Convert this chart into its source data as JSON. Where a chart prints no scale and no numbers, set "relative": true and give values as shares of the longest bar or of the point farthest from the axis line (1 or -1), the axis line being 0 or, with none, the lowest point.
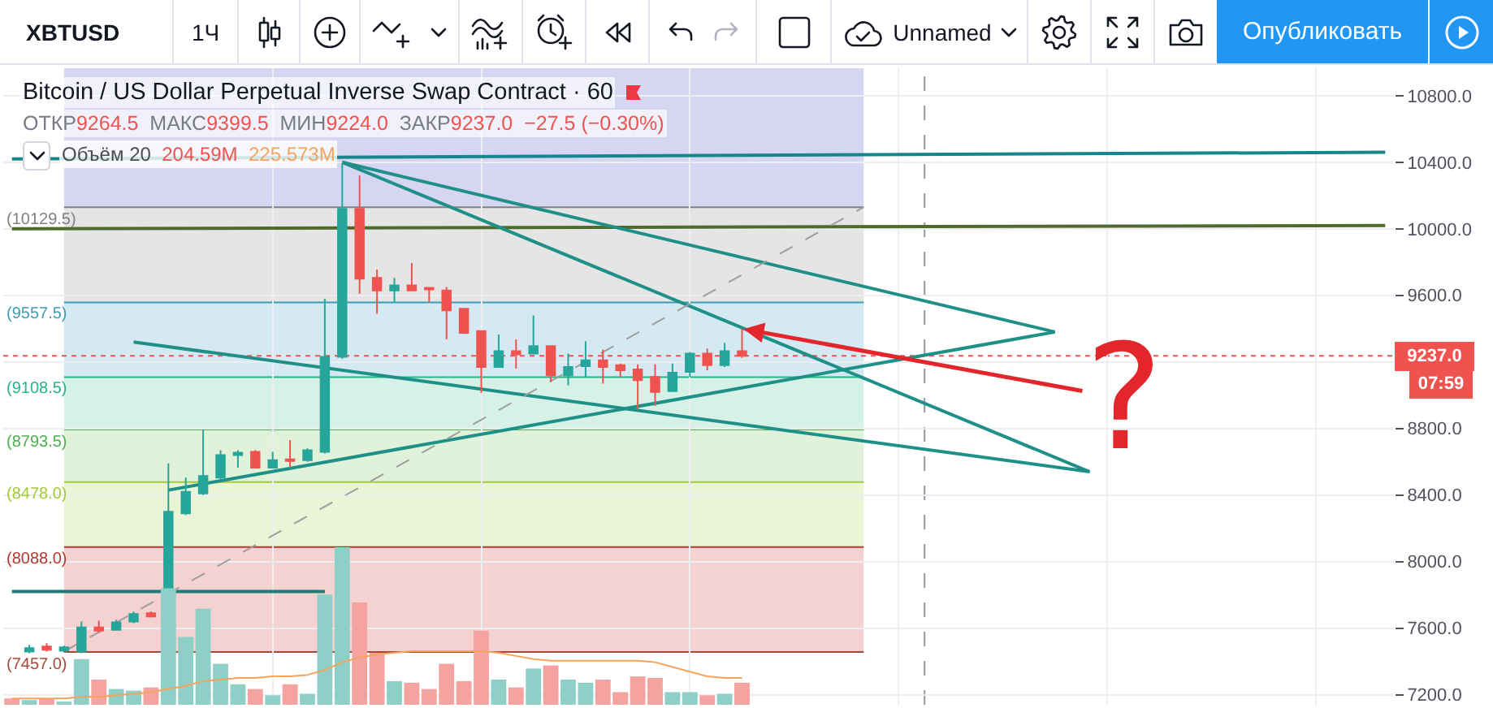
{
  "chart_data": [
    {
      "type": "other",
      "annotations": [
        "XBTUSD",
        "1Ч",
        "Unnamed",
        "Опубликовать"
      ]
    },
    {
      "type": "candlestick",
      "title": "Bitcoin / US Dollar Perpetual Inverse Swap Contract · 60",
      "subtitle": "ОТКР9264.5  МАКС9399.5  МИН9224.0  ЗАКР9237.0  −27.5 (−0.30%)",
      "categories": [
        null,
        null,
        null,
        null,
        null,
        null,
        null,
        null,
        null,
        null,
        null,
        null,
        null,
        null,
        null,
        null,
        null,
        null,
        null,
        null,
        null,
        null,
        null,
        null,
        null,
        null,
        null,
        null,
        null,
        null,
        null,
        null,
        null,
        null,
        null,
        null,
        null,
        null,
        null,
        null,
        null,
        null,
        null,
        null,
        null,
        null,
        null,
        null,
        null,
        null,
        null,
        null,
        null,
        null,
        null,
        null,
        null,
        null,
        null,
        null,
        null,
        null,
        null,
        null,
        null,
        null,
        null,
        null,
        null,
        null,
        null,
        null,
        null,
        null,
        null,
        null,
        null,
        null,
        null,
        null
      ],
      "ohlc": [
        null,
        [
          7460,
          7500,
          7450,
          7480
        ],
        [
          7490,
          7510,
          7460,
          7470
        ],
        [
          7465,
          7495,
          7455,
          7485
        ],
        [
          7460,
          7640,
          7450,
          7605
        ],
        [
          7605,
          7645,
          7575,
          7585
        ],
        [
          7590,
          7650,
          7585,
          7635
        ],
        [
          7640,
          7700,
          7630,
          7685
        ],
        [
          7690,
          7700,
          7665,
          7670
        ],
        [
          7670,
          8590,
          7655,
          8300
        ],
        [
          8290,
          8505,
          8280,
          8420
        ],
        [
          8410,
          8790,
          8400,
          8515
        ],
        [
          8505,
          8670,
          8495,
          8640
        ],
        [
          8640,
          8670,
          8565,
          8655
        ],
        [
          8660,
          8670,
          8560,
          8565
        ],
        [
          8565,
          8660,
          8560,
          8610
        ],
        [
          8615,
          8730,
          8565,
          8605
        ],
        [
          8610,
          8680,
          8600,
          8670
        ],
        [
          8660,
          9580,
          8650,
          9230
        ],
        [
          9230,
          10390,
          9220,
          10120
        ],
        [
          10120,
          10320,
          9610,
          9700
        ],
        [
          9705,
          9755,
          9490,
          9630
        ],
        [
          9630,
          9705,
          9560,
          9660
        ],
        [
          9660,
          9795,
          9625,
          9630
        ],
        [
          9645,
          9650,
          9560,
          9635
        ],
        [
          9630,
          9650,
          9335,
          9510
        ],
        [
          9520,
          9525,
          9370,
          9375
        ],
        [
          9385,
          9390,
          9015,
          9170
        ],
        [
          9170,
          9365,
          9165,
          9265
        ],
        [
          9265,
          9335,
          9160,
          9245
        ],
        [
          9250,
          9480,
          9245,
          9295
        ],
        [
          9295,
          9300,
          9080,
          9120
        ],
        [
          9120,
          9250,
          9060,
          9170
        ],
        [
          9175,
          9325,
          9110,
          9210
        ],
        [
          9210,
          9275,
          9070,
          9170
        ],
        [
          9180,
          9190,
          9110,
          9150
        ],
        [
          9155,
          9185,
          8915,
          9090
        ],
        [
          9110,
          9185,
          8935,
          9020
        ],
        [
          9025,
          9190,
          9020,
          9135
        ],
        [
          9140,
          9260,
          9110,
          9250
        ],
        [
          9250,
          9280,
          9150,
          9180
        ],
        [
          9180,
          9315,
          9170,
          9265
        ],
        [
          9264.5,
          9399.5,
          9224.0,
          9237.0
        ],
        null,
        null,
        null,
        null,
        null,
        null,
        null,
        null,
        null,
        null,
        null,
        null,
        null,
        null,
        null,
        null,
        null,
        null,
        null,
        null,
        null,
        null,
        null,
        null,
        null,
        null,
        null,
        null,
        null,
        null,
        null,
        null,
        null,
        null,
        null,
        null,
        null
      ],
      "colors": [
        null,
        "#26a69a",
        "#ef5350",
        "#26a69a",
        "#26a69a",
        "#ef5350",
        "#26a69a",
        "#26a69a",
        "#ef5350",
        "#26a69a",
        "#26a69a",
        "#26a69a",
        "#26a69a",
        "#26a69a",
        "#ef5350",
        "#26a69a",
        "#ef5350",
        "#26a69a",
        "#26a69a",
        "#26a69a",
        "#ef5350",
        "#ef5350",
        "#26a69a",
        "#ef5350",
        "#ef5350",
        "#ef5350",
        "#ef5350",
        "#ef5350",
        "#26a69a",
        "#ef5350",
        "#26a69a",
        "#ef5350",
        "#26a69a",
        "#26a69a",
        "#ef5350",
        "#ef5350",
        "#ef5350",
        "#ef5350",
        "#26a69a",
        "#26a69a",
        "#ef5350",
        "#26a69a",
        "#ef5350",
        null,
        null,
        null,
        null,
        null,
        null,
        null,
        null,
        null,
        null,
        null,
        null,
        null,
        null,
        null,
        null,
        null,
        null,
        null,
        null,
        null,
        null,
        null,
        null,
        null,
        null,
        null,
        null,
        null,
        null,
        null,
        null,
        null,
        null,
        null,
        null,
        null
      ],
      "series": [
        {
          "type": "line",
          "color": "#15868a",
          "values": [
            10420,
            null,
            null,
            null,
            null,
            null,
            null,
            null,
            null,
            null,
            null,
            null,
            null,
            null,
            null,
            null,
            null,
            null,
            null,
            null,
            null,
            null,
            null,
            null,
            null,
            null,
            null,
            null,
            null,
            null,
            null,
            null,
            null,
            null,
            null,
            null,
            null,
            null,
            null,
            null,
            null,
            null,
            null,
            null,
            null,
            null,
            null,
            null,
            null,
            null,
            null,
            null,
            null,
            null,
            null,
            null,
            null,
            null,
            null,
            null,
            null,
            null,
            null,
            null,
            null,
            null,
            null,
            null,
            null,
            null,
            null,
            null,
            null,
            null,
            null,
            null,
            null,
            null,
            null,
            10460
          ]
        },
        {
          "type": "line",
          "color": "#4e6a2c",
          "values": [
            10000,
            null,
            null,
            null,
            null,
            null,
            null,
            null,
            null,
            null,
            null,
            null,
            null,
            null,
            null,
            null,
            null,
            null,
            null,
            null,
            null,
            null,
            null,
            null,
            null,
            null,
            null,
            null,
            null,
            null,
            null,
            null,
            null,
            null,
            null,
            null,
            null,
            null,
            null,
            null,
            null,
            null,
            null,
            null,
            null,
            null,
            null,
            null,
            null,
            null,
            null,
            null,
            null,
            null,
            null,
            null,
            null,
            null,
            null,
            null,
            null,
            null,
            null,
            null,
            null,
            null,
            null,
            null,
            null,
            null,
            null,
            null,
            null,
            null,
            null,
            null,
            null,
            null,
            null,
            10020
          ]
        },
        {
          "type": "line",
          "color": "#1f9088",
          "values": [
            null,
            null,
            null,
            null,
            null,
            null,
            null,
            null,
            null,
            8430,
            null,
            null,
            null,
            null,
            null,
            null,
            null,
            null,
            null,
            null,
            null,
            null,
            null,
            null,
            null,
            null,
            null,
            null,
            null,
            null,
            null,
            null,
            null,
            null,
            null,
            null,
            null,
            null,
            null,
            null,
            null,
            null,
            null,
            null,
            null,
            null,
            null,
            null,
            null,
            null,
            null,
            null,
            null,
            null,
            null,
            null,
            null,
            null,
            null,
            null,
            9380,
            null,
            null,
            null,
            null,
            null,
            null,
            null,
            null,
            null,
            null,
            null,
            null,
            null,
            null,
            null,
            null,
            null,
            null,
            null
          ]
        },
        {
          "type": "line",
          "color": "#1f9088",
          "values": [
            null,
            null,
            null,
            null,
            null,
            null,
            null,
            null,
            null,
            null,
            null,
            null,
            null,
            null,
            null,
            null,
            null,
            null,
            null,
            10400,
            null,
            null,
            null,
            null,
            null,
            null,
            null,
            null,
            null,
            null,
            null,
            null,
            null,
            null,
            null,
            null,
            null,
            null,
            null,
            null,
            null,
            null,
            null,
            null,
            null,
            null,
            null,
            null,
            null,
            null,
            null,
            null,
            null,
            null,
            null,
            null,
            null,
            null,
            null,
            null,
            9380,
            null,
            null,
            null,
            null,
            null,
            null,
            null,
            null,
            null,
            null,
            null,
            null,
            null,
            null,
            null,
            null,
            null,
            null,
            null
          ]
        },
        {
          "type": "line",
          "color": "#1f9088",
          "values": [
            null,
            null,
            null,
            null,
            null,
            null,
            null,
            null,
            null,
            null,
            null,
            null,
            null,
            null,
            null,
            null,
            null,
            null,
            null,
            10400,
            null,
            null,
            null,
            null,
            null,
            null,
            null,
            null,
            null,
            null,
            null,
            null,
            null,
            null,
            null,
            null,
            null,
            null,
            null,
            null,
            null,
            null,
            null,
            null,
            null,
            null,
            null,
            null,
            null,
            null,
            null,
            null,
            null,
            null,
            null,
            null,
            null,
            null,
            null,
            null,
            null,
            null,
            8540,
            null,
            null,
            null,
            null,
            null,
            null,
            null,
            null,
            null,
            null,
            null,
            null,
            null,
            null,
            null,
            null,
            null
          ]
        },
        {
          "type": "line",
          "color": "#1f9088",
          "values": [
            null,
            null,
            null,
            null,
            null,
            null,
            null,
            9320,
            null,
            null,
            null,
            null,
            null,
            null,
            null,
            null,
            null,
            null,
            null,
            null,
            null,
            null,
            null,
            null,
            null,
            null,
            null,
            null,
            null,
            null,
            null,
            null,
            null,
            null,
            null,
            null,
            null,
            null,
            null,
            null,
            null,
            null,
            null,
            null,
            null,
            null,
            null,
            null,
            null,
            null,
            null,
            null,
            null,
            null,
            null,
            null,
            null,
            null,
            null,
            null,
            null,
            null,
            8540,
            null,
            null,
            null,
            null,
            null,
            null,
            null,
            null,
            null,
            null,
            null,
            null,
            null,
            null,
            null,
            null,
            null
          ]
        },
        {
          "type": "line",
          "color": "#1e7b77",
          "values": [
            7820,
            null,
            null,
            null,
            null,
            null,
            null,
            null,
            null,
            null,
            null,
            null,
            null,
            null,
            null,
            null,
            null,
            null,
            7820,
            null,
            null,
            null,
            null,
            null,
            null,
            null,
            null,
            null,
            null,
            null,
            null,
            null,
            null,
            null,
            null,
            null,
            null,
            null,
            null,
            null,
            null,
            null,
            null,
            null,
            null,
            null,
            null,
            null,
            null,
            null,
            null,
            null,
            null,
            null,
            null,
            null,
            null,
            null,
            null,
            null,
            null,
            null,
            null,
            null,
            null,
            null,
            null,
            null,
            null,
            null,
            null,
            null,
            null,
            null,
            null,
            null,
            null,
            null,
            null,
            null
          ]
        },
        {
          "type": "line",
          "color": "#9e9e9e",
          "line_style": "dashed",
          "values": [
            null,
            null,
            null,
            7460,
            null,
            null,
            null,
            null,
            null,
            null,
            null,
            null,
            null,
            null,
            null,
            null,
            null,
            null,
            null,
            null,
            null,
            null,
            null,
            null,
            null,
            null,
            null,
            null,
            null,
            null,
            null,
            null,
            null,
            null,
            null,
            null,
            null,
            null,
            null,
            null,
            null,
            null,
            null,
            null,
            null,
            null,
            null,
            null,
            null,
            10130,
            null,
            null,
            null,
            null,
            null,
            null,
            null,
            null,
            null,
            null,
            null,
            null,
            null,
            null,
            null,
            null,
            null,
            null,
            null,
            null,
            null,
            null,
            null,
            null,
            null,
            null,
            null,
            null,
            null,
            null
          ]
        }
      ],
      "ylim": [
        7140,
        10965
      ],
      "yticks": [
        {
          "value": 7200,
          "label": "7200.0"
        },
        {
          "value": 7600,
          "label": "7600.0"
        },
        {
          "value": 8000,
          "label": "8000.0"
        },
        {
          "value": 8400,
          "label": "8400.0"
        },
        {
          "value": 8800,
          "label": "8800.0"
        },
        {
          "value": 9200,
          "label": null
        },
        {
          "value": 9600,
          "label": "9600.0"
        },
        {
          "value": 10000,
          "label": "10000.0"
        },
        {
          "value": 10400,
          "label": "10400.0"
        },
        {
          "value": 10800,
          "label": "10800.0"
        }
      ],
      "ref_lines": [
        {
          "axis": "y",
          "value": 10129.5,
          "label": "(10129.5)",
          "color": "#808080"
        },
        {
          "axis": "y",
          "value": 9557.5,
          "label": "(9557.5)",
          "color": "#3d9cb5"
        },
        {
          "axis": "y",
          "value": 9108.5,
          "label": "(9108.5)",
          "color": "#26b38c"
        },
        {
          "axis": "y",
          "value": 8793.5,
          "label": "(8793.5)",
          "color": "#4caf50"
        },
        {
          "axis": "y",
          "value": 8478.0,
          "label": "(8478.0)",
          "color": "#a4c93a"
        },
        {
          "axis": "y",
          "value": 8088.0,
          "label": "(8088.0)",
          "color": "#b5392f"
        },
        {
          "axis": "y",
          "value": 7457.0,
          "label": "(7457.0)",
          "color": "#a9473a"
        },
        {
          "axis": "y",
          "value": 9237.0,
          "label": "9237.0",
          "color": "#ef5350",
          "line_style": "dotted"
        }
      ],
      "bands": [
        {
          "axis": "y",
          "from": 10129.5,
          "to": 10965,
          "color": "#d6d6f3"
        },
        {
          "axis": "y",
          "from": 9557.5,
          "to": 10129.5,
          "color": "#e5e5e6"
        },
        {
          "axis": "y",
          "from": 9108.5,
          "to": 9557.5,
          "color": "#d5e9f2"
        },
        {
          "axis": "y",
          "from": 8793.5,
          "to": 9108.5,
          "color": "#d6f2e7"
        },
        {
          "axis": "y",
          "from": 8478.0,
          "to": 8793.5,
          "color": "#e1f2da"
        },
        {
          "axis": "y",
          "from": 8088.0,
          "to": 8478.0,
          "color": "#e9f5d6"
        },
        {
          "axis": "y",
          "from": 7457.0,
          "to": 8088.0,
          "color": "#f4d2d1"
        }
      ],
      "annotations": [
        "07:59",
        "?"
      ],
      "grid": true,
      "tick_labels": "y"
    },
    {
      "type": "bar",
      "relative": true,
      "categories": [
        null,
        null,
        null,
        null,
        null,
        null,
        null,
        null,
        null,
        null,
        null,
        null,
        null,
        null,
        null,
        null,
        null,
        null,
        null,
        null,
        null,
        null,
        null,
        null,
        null,
        null,
        null,
        null,
        null,
        null,
        null,
        null,
        null,
        null,
        null,
        null,
        null,
        null,
        null,
        null,
        null,
        null,
        null,
        null,
        null,
        null,
        null,
        null,
        null,
        null,
        null,
        null,
        null,
        null,
        null,
        null,
        null,
        null,
        null,
        null,
        null,
        null,
        null,
        null,
        null,
        null,
        null,
        null,
        null,
        null,
        null,
        null,
        null,
        null,
        null,
        null,
        null,
        null,
        null,
        null
      ],
      "series": [
        {
          "type": "bar",
          "colors": [
            "#f4a3a1",
            "#8ed0c8",
            "#f4a3a1",
            "#8ed0c8",
            "#8ed0c8",
            "#f4a3a1",
            "#8ed0c8",
            "#8ed0c8",
            "#f4a3a1",
            "#8ed0c8",
            "#8ed0c8",
            "#8ed0c8",
            "#8ed0c8",
            "#8ed0c8",
            "#f4a3a1",
            "#8ed0c8",
            "#f4a3a1",
            "#8ed0c8",
            "#8ed0c8",
            "#8ed0c8",
            "#f4a3a1",
            "#f4a3a1",
            "#8ed0c8",
            "#f4a3a1",
            "#f4a3a1",
            "#f4a3a1",
            "#f4a3a1",
            "#f4a3a1",
            "#8ed0c8",
            "#f4a3a1",
            "#8ed0c8",
            "#f4a3a1",
            "#8ed0c8",
            "#8ed0c8",
            "#f4a3a1",
            "#f4a3a1",
            "#f4a3a1",
            "#f4a3a1",
            "#8ed0c8",
            "#8ed0c8",
            "#f4a3a1",
            "#8ed0c8",
            "#f4a3a1",
            null,
            null,
            null,
            null,
            null,
            null,
            null,
            null,
            null,
            null,
            null,
            null,
            null,
            null,
            null,
            null,
            null,
            null,
            null,
            null,
            null,
            null,
            null,
            null,
            null,
            null,
            null,
            null,
            null,
            null,
            null,
            null,
            null,
            null,
            null,
            null,
            null
          ],
          "values": [
            0.04,
            0.03,
            0.04,
            0.02,
            0.29,
            0.16,
            0.1,
            0.09,
            0.11,
            0.74,
            0.43,
            0.61,
            0.26,
            0.13,
            0.1,
            0.06,
            0.13,
            0.07,
            0.7,
            1,
            0.65,
            0.33,
            0.15,
            0.14,
            0.1,
            0.26,
            0.15,
            0.47,
            0.16,
            0.11,
            0.23,
            0.25,
            0.16,
            0.14,
            0.16,
            0.08,
            0.18,
            0.17,
            0.08,
            0.08,
            0.06,
            0.07,
            0.14,
            null,
            null,
            null,
            null,
            null,
            null,
            null,
            null,
            null,
            null,
            null,
            null,
            null,
            null,
            null,
            null,
            null,
            null,
            null,
            null,
            null,
            null,
            null,
            null,
            null,
            null,
            null,
            null,
            null,
            null,
            null,
            null,
            null,
            null,
            null,
            null,
            null
          ]
        },
        {
          "type": "line",
          "color": "#f6a35b",
          "values": [
            0.04,
            0.04,
            0.04,
            0.04,
            0.05,
            0.05,
            0.06,
            0.07,
            0.08,
            0.1,
            0.12,
            0.15,
            0.16,
            0.17,
            0.17,
            0.18,
            0.18,
            0.19,
            0.22,
            0.27,
            0.3,
            0.32,
            0.33,
            0.34,
            0.34,
            0.34,
            0.34,
            0.34,
            0.33,
            0.31,
            0.29,
            0.28,
            0.28,
            0.28,
            0.28,
            0.28,
            0.28,
            0.27,
            0.24,
            0.21,
            0.18,
            0.17,
            0.17,
            null,
            null,
            null,
            null,
            null,
            null,
            null,
            null,
            null,
            null,
            null,
            null,
            null,
            null,
            null,
            null,
            null,
            null,
            null,
            null,
            null,
            null,
            null,
            null,
            null,
            null,
            null,
            null,
            null,
            null,
            null,
            null,
            null,
            null,
            null,
            null,
            null
          ]
        }
      ],
      "annotations": [
        "Объём 20",
        "204.59M",
        "225.573M"
      ]
    }
  ]
}
